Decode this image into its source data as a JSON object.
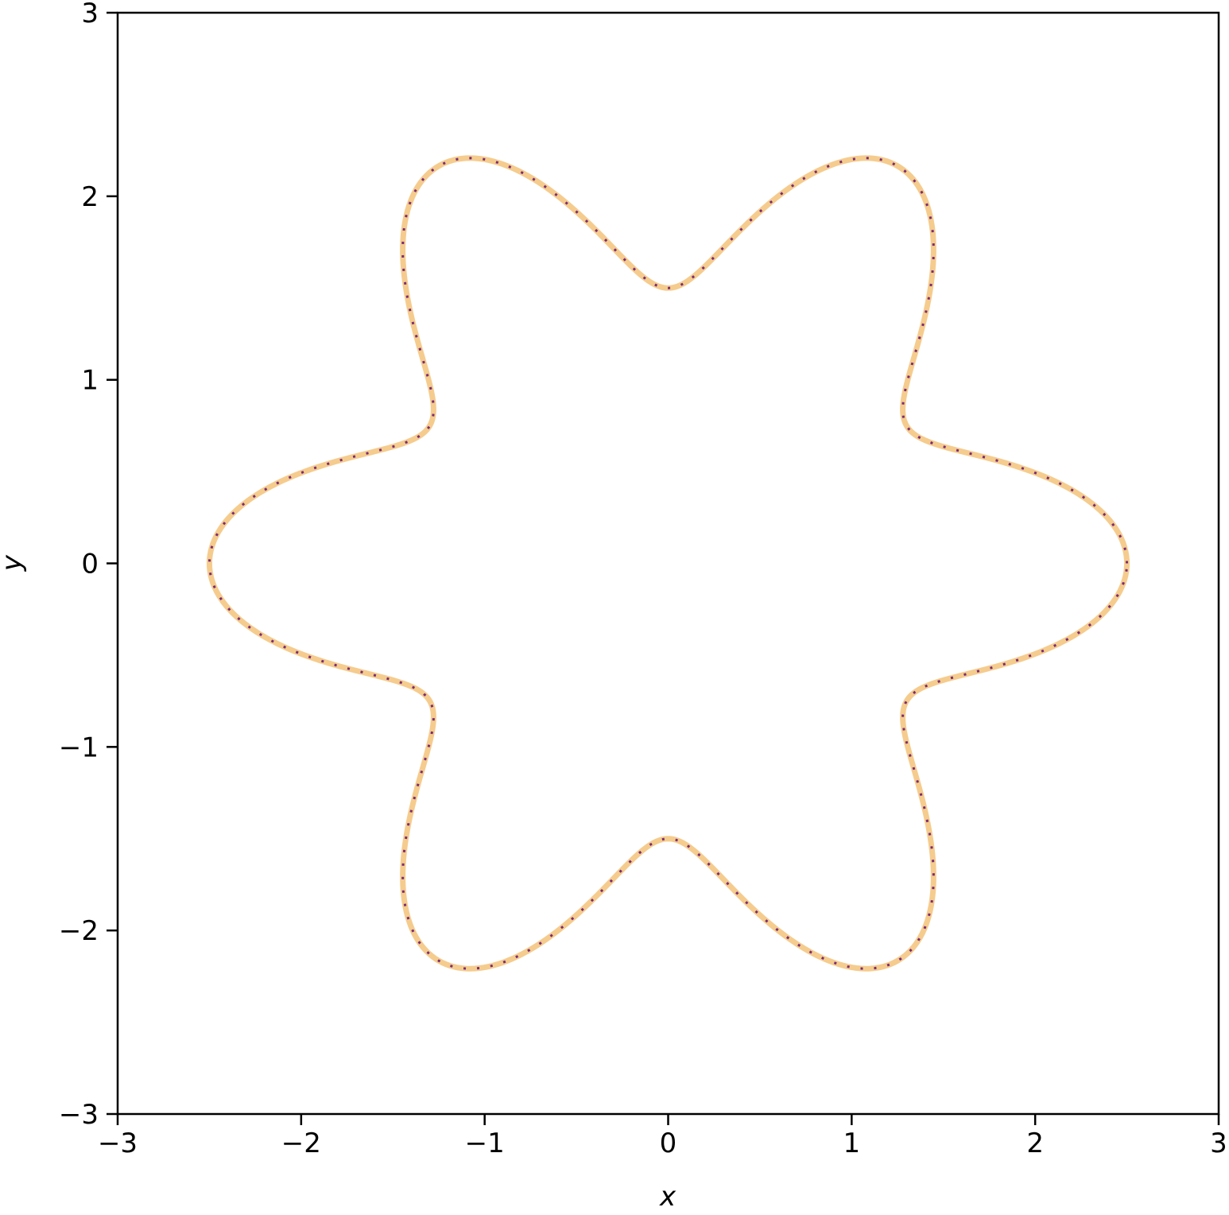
{
  "chart_data": {
    "type": "line",
    "title": "",
    "xlabel": "x",
    "ylabel": "y",
    "xlim": [
      -3,
      3
    ],
    "ylim": [
      -3,
      3
    ],
    "x_ticks": [
      -3,
      -2,
      -1,
      0,
      1,
      2,
      3
    ],
    "y_ticks": [
      -3,
      -2,
      -1,
      0,
      1,
      2,
      3
    ],
    "x_tick_labels": [
      "−3",
      "−2",
      "−1",
      "0",
      "1",
      "2",
      "3"
    ],
    "y_tick_labels": [
      "−3",
      "−2",
      "−1",
      "0",
      "1",
      "2",
      "3"
    ],
    "grid": false,
    "legend": "none",
    "series": [
      {
        "style": "solid-thick",
        "color": "#f5cc8e",
        "curve": "polar rose r(t) = 2 + 0.5*cos(6t), t in [0, 2π]",
        "samples": 721
      },
      {
        "style": "dotted",
        "color": "#7b2a73",
        "curve": "polar rose r(t) = 2 + 0.5*cos(6t), t in [0, 2π]",
        "samples": 721
      }
    ]
  }
}
